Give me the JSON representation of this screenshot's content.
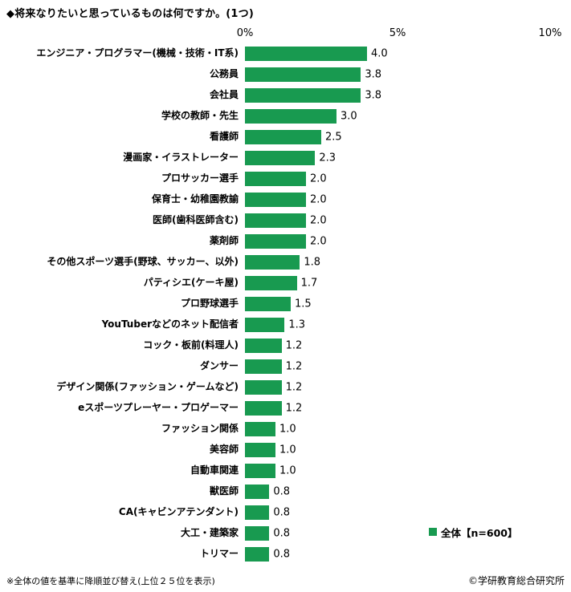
{
  "title": "◆将来なりたいと思っているものは何ですか。(1つ)",
  "footnote_left": "※全体の値を基準に降順並び替え(上位２５位を表示)",
  "footnote_right": "©学研教育総合研究所",
  "chart_data": {
    "type": "bar",
    "orientation": "horizontal",
    "title": "◆将来なりたいと思っているものは何ですか。(1つ)",
    "legend": "全体【n=600】",
    "legend_position": "right-bottom",
    "bar_color": "#189a50",
    "xlim": [
      0,
      10
    ],
    "x_ticks": [
      {
        "label": "0%",
        "value": 0
      },
      {
        "label": "5%",
        "value": 5
      },
      {
        "label": "10%",
        "value": 10
      }
    ],
    "grid": false,
    "categories": [
      "エンジニア・プログラマー(機械・技術・IT系)",
      "公務員",
      "会社員",
      "学校の教師・先生",
      "看護師",
      "漫画家・イラストレーター",
      "プロサッカー選手",
      "保育士・幼稚園教諭",
      "医師(歯科医師含む)",
      "薬剤師",
      "その他スポーツ選手(野球、サッカー、以外)",
      "パティシエ(ケーキ屋)",
      "プロ野球選手",
      "YouTuberなどのネット配信者",
      "コック・板前(料理人)",
      "ダンサー",
      "デザイン関係(ファッション・ゲームなど)",
      "eスポーツプレーヤー・プロゲーマー",
      "ファッション関係",
      "美容師",
      "自動車関連",
      "獣医師",
      "CA(キャビンアテンダント)",
      "大工・建築家",
      "トリマー"
    ],
    "values": [
      4.0,
      3.8,
      3.8,
      3.0,
      2.5,
      2.3,
      2.0,
      2.0,
      2.0,
      2.0,
      1.8,
      1.7,
      1.5,
      1.3,
      1.2,
      1.2,
      1.2,
      1.2,
      1.0,
      1.0,
      1.0,
      0.8,
      0.8,
      0.8,
      0.8
    ]
  }
}
